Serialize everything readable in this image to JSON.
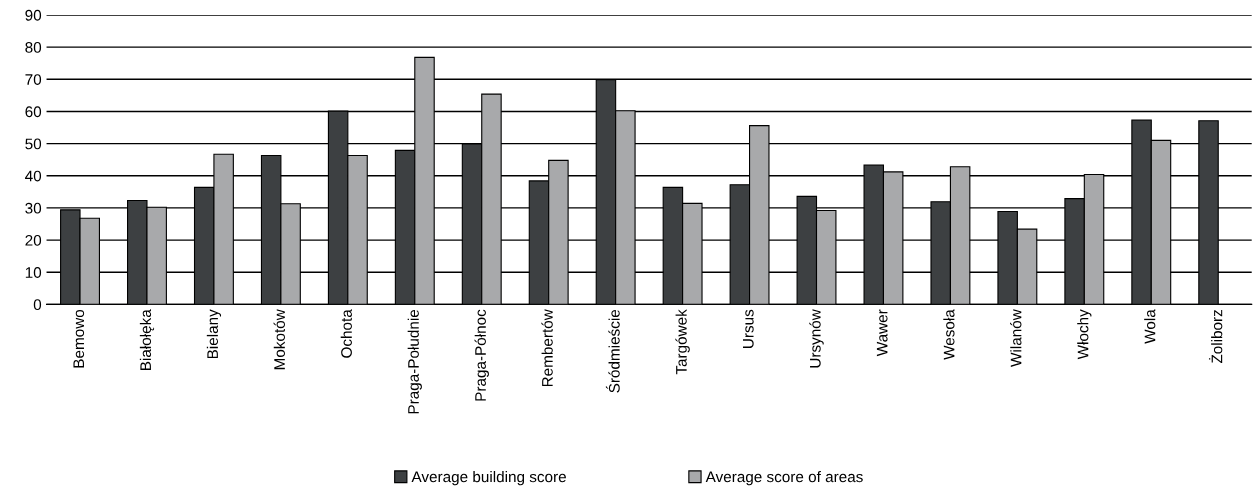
{
  "chart_data": {
    "type": "bar",
    "categories": [
      "Bemowo",
      "Białołęka",
      "Bielany",
      "Mokotów",
      "Ochota",
      "Praga-Południe",
      "Praga-Północ",
      "Rembertów",
      "Śródmieście",
      "Targówek",
      "Ursus",
      "Ursynów",
      "Wawer",
      "Wesoła",
      "Wilanów",
      "Włochy",
      "Wola",
      "Żoliborz"
    ],
    "series": [
      {
        "name": "Average building score",
        "color": "#3d4042",
        "values": [
          29.4,
          32.3,
          36.4,
          46.3,
          60.1,
          47.9,
          49.9,
          38.4,
          69.9,
          36.4,
          37.2,
          33.6,
          43.3,
          31.9,
          28.9,
          32.9,
          57.3,
          57.1
        ]
      },
      {
        "name": "Average score of areas",
        "color": "#a8a9ab",
        "values": [
          26.8,
          30.2,
          46.7,
          31.3,
          46.3,
          76.8,
          65.4,
          44.8,
          60.2,
          31.4,
          55.6,
          29.2,
          41.2,
          42.8,
          23.4,
          40.4,
          51.0,
          null
        ]
      }
    ],
    "ylim": [
      0,
      90
    ],
    "yticks": [
      0,
      10,
      20,
      30,
      40,
      50,
      60,
      70,
      80,
      90
    ],
    "grid": "y",
    "legend": "bottom"
  }
}
